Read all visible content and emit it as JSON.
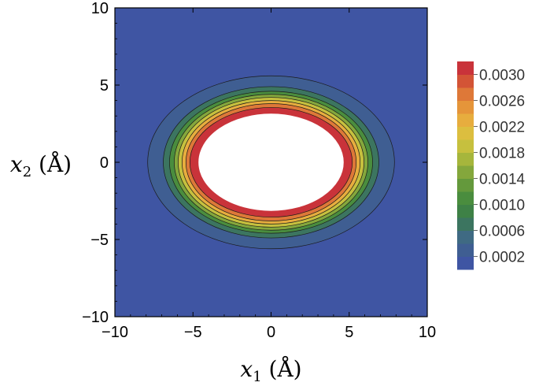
{
  "chart_data": {
    "type": "heatmap",
    "subtype": "filled-contour",
    "xlabel": "x_1 (Å)",
    "ylabel": "x_2 (Å)",
    "xlim": [
      -10,
      10
    ],
    "ylim": [
      -10,
      10
    ],
    "x_ticks": [
      "−10",
      "−5",
      "0",
      "5",
      "10"
    ],
    "y_ticks": [
      "−10",
      "−5",
      "0",
      "5",
      "10"
    ],
    "colorbar": {
      "ticks": [
        "0.0002",
        "0.0006",
        "0.0010",
        "0.0014",
        "0.0018",
        "0.0022",
        "0.0026",
        "0.0030"
      ],
      "levels": [
        0.0,
        0.0002,
        0.0004,
        0.0006,
        0.0008,
        0.001,
        0.0012,
        0.0014,
        0.0016,
        0.0018,
        0.002,
        0.0022,
        0.0024,
        0.0026,
        0.0028,
        0.003,
        0.0032
      ],
      "colors": [
        "#3f55a3",
        "#3f5e92",
        "#3f6a83",
        "#3c7560",
        "#3e8146",
        "#4a8d3e",
        "#64993c",
        "#84a73c",
        "#a6b63c",
        "#c6c03e",
        "#dcbe3f",
        "#e7ad3e",
        "#e5953a",
        "#de7838",
        "#d35436",
        "#c9333a"
      ]
    },
    "contours": [
      {
        "level": 0.0001,
        "rx": 7.9,
        "ry": 5.6
      },
      {
        "level": 0.0004,
        "rx": 6.9,
        "ry": 4.9
      },
      {
        "level": 0.0008,
        "rx": 6.5,
        "ry": 4.6
      },
      {
        "level": 0.0012,
        "rx": 6.2,
        "ry": 4.4
      },
      {
        "level": 0.0016,
        "rx": 5.95,
        "ry": 4.2
      },
      {
        "level": 0.002,
        "rx": 5.7,
        "ry": 4.0
      },
      {
        "level": 0.0024,
        "rx": 5.45,
        "ry": 3.8
      },
      {
        "level": 0.0028,
        "rx": 5.2,
        "ry": 3.55
      },
      {
        "level": 0.0032,
        "rx": 4.75,
        "ry": 3.25
      }
    ],
    "center": [
      0,
      0
    ],
    "grid": false
  },
  "colors": {
    "background_field": "#3f55a3",
    "empty_core": "#ffffff",
    "contour_line": "#1a1a1a"
  }
}
